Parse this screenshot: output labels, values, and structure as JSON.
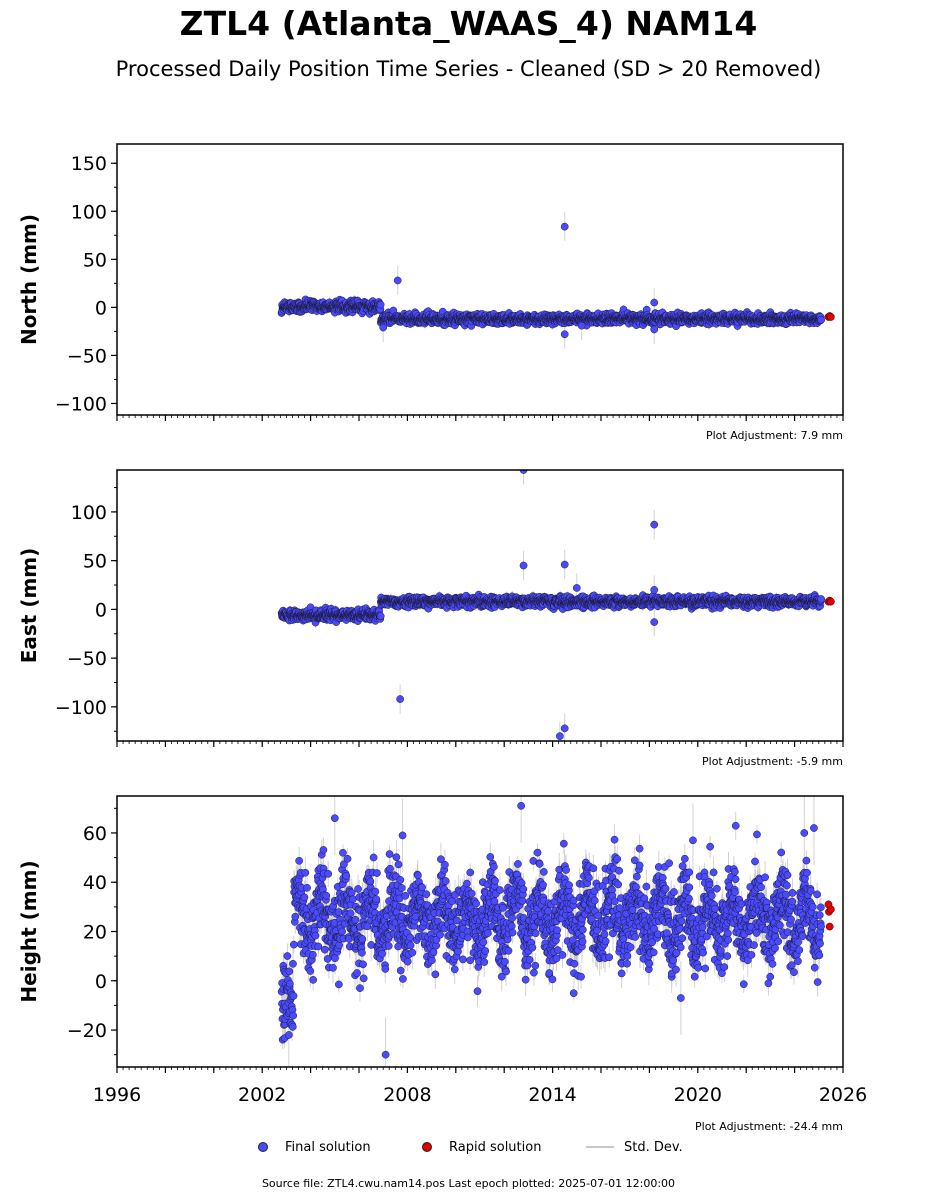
{
  "title": "ZTL4 (Atlanta_WAAS_4) NAM14",
  "subtitle": "Processed Daily Position Time Series - Cleaned (SD > 20 Removed)",
  "legend": {
    "final": "Final solution",
    "rapid": "Rapid solution",
    "std": "Std. Dev."
  },
  "source": "Source file: ZTL4.cwu.nam14.pos  Last epoch plotted: 2025-07-01 12:00:00",
  "colors": {
    "final": "#4a4aff",
    "rapid": "#e00000",
    "std": "#c8c8c8",
    "edge": "#1a1a3a"
  },
  "chart_data": [
    {
      "type": "scatter",
      "ylabel": "North (mm)",
      "ylim": [
        -112,
        170
      ],
      "yticks": [
        -100,
        -50,
        0,
        50,
        100,
        150
      ],
      "xlim": [
        1996,
        2026
      ],
      "adjustment": "Plot Adjustment: 7.9 mm",
      "segments": [
        {
          "from": 2002.8,
          "to": 2006.9,
          "level": 1,
          "noise": 2.5,
          "std": 4
        },
        {
          "from": 2006.9,
          "to": 2025.1,
          "level": -12,
          "noise": 2.5,
          "std": 4
        }
      ],
      "outliers": [
        {
          "x": 2007.6,
          "y": 28
        },
        {
          "x": 2014.5,
          "y": 84
        },
        {
          "x": 2014.5,
          "y": -28
        },
        {
          "x": 2015.2,
          "y": -19
        },
        {
          "x": 2018.2,
          "y": -23
        },
        {
          "x": 2018.2,
          "y": 5
        },
        {
          "x": 2007.0,
          "y": -21
        }
      ],
      "rapid": [
        {
          "x": 2025.4,
          "y": -10
        },
        {
          "x": 2025.45,
          "y": -9
        },
        {
          "x": 2025.5,
          "y": -10
        }
      ]
    },
    {
      "type": "scatter",
      "ylabel": "East (mm)",
      "ylim": [
        -135,
        143
      ],
      "yticks": [
        -100,
        -50,
        0,
        50,
        100
      ],
      "xlim": [
        1996,
        2026
      ],
      "adjustment": "Plot Adjustment: -5.9 mm",
      "segments": [
        {
          "from": 2002.8,
          "to": 2006.9,
          "level": -6,
          "noise": 2.5,
          "std": 4
        },
        {
          "from": 2006.9,
          "to": 2025.1,
          "level": 8,
          "noise": 2.5,
          "std": 4
        }
      ],
      "outliers": [
        {
          "x": 2007.7,
          "y": -92
        },
        {
          "x": 2012.8,
          "y": 143
        },
        {
          "x": 2012.8,
          "y": 45
        },
        {
          "x": 2014.3,
          "y": -130
        },
        {
          "x": 2014.5,
          "y": -122
        },
        {
          "x": 2014.5,
          "y": 46
        },
        {
          "x": 2018.2,
          "y": 87
        },
        {
          "x": 2018.2,
          "y": -13
        },
        {
          "x": 2018.2,
          "y": 20
        },
        {
          "x": 2015.0,
          "y": 22
        }
      ],
      "rapid": [
        {
          "x": 2025.4,
          "y": 8
        },
        {
          "x": 2025.45,
          "y": 9
        },
        {
          "x": 2025.5,
          "y": 8
        }
      ]
    },
    {
      "type": "scatter",
      "ylabel": "Height (mm)",
      "ylim": [
        -35,
        75
      ],
      "yticks": [
        -20,
        0,
        20,
        40,
        60
      ],
      "xlim": [
        1996,
        2026
      ],
      "xticks": [
        1996,
        2002,
        2008,
        2014,
        2020,
        2026
      ],
      "adjustment": "Plot Adjustment: -24.4 mm",
      "segments": [
        {
          "from": 2002.8,
          "to": 2003.3,
          "level": -8,
          "noise": 8,
          "std": 5
        },
        {
          "from": 2003.3,
          "to": 2025.1,
          "level": 26,
          "noise": 8,
          "std": 5,
          "seasonal": 9
        }
      ],
      "outliers": [
        {
          "x": 2005.0,
          "y": 66
        },
        {
          "x": 2007.1,
          "y": -30
        },
        {
          "x": 2012.7,
          "y": 71
        },
        {
          "x": 2019.8,
          "y": 57
        },
        {
          "x": 2007.8,
          "y": 59
        },
        {
          "x": 2024.4,
          "y": 60
        },
        {
          "x": 2024.8,
          "y": 62
        },
        {
          "x": 2019.3,
          "y": -7
        },
        {
          "x": 2003.1,
          "y": -22
        }
      ],
      "rapid": [
        {
          "x": 2025.4,
          "y": 31
        },
        {
          "x": 2025.42,
          "y": 28
        },
        {
          "x": 2025.45,
          "y": 22
        },
        {
          "x": 2025.5,
          "y": 29
        }
      ]
    }
  ]
}
